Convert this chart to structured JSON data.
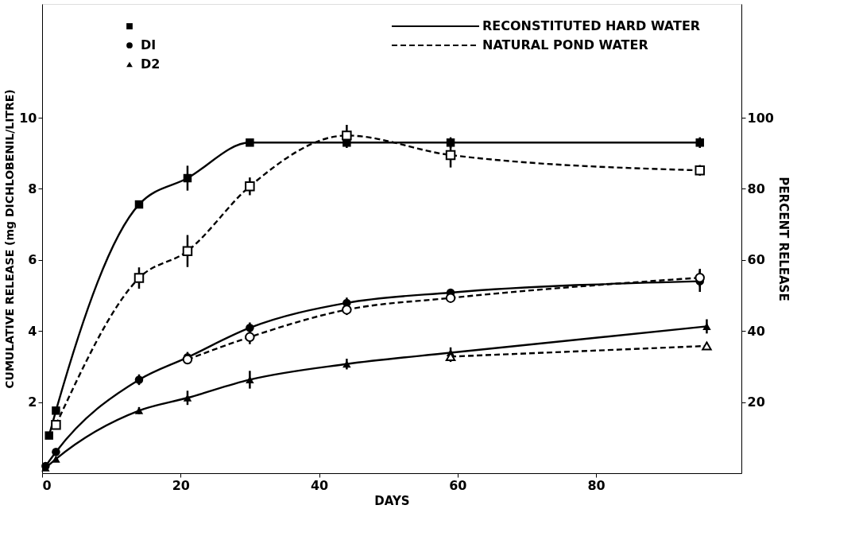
{
  "chart_data": {
    "type": "line",
    "xlabel": "DAYS",
    "ylabel": "CUMULATIVE RELEASE (mg DICHLOBENIL/LITRE)",
    "y2label": "PERCENT RELEASE",
    "xlim": [
      0,
      101
    ],
    "xticks": [
      0,
      20,
      40,
      60,
      80
    ],
    "ylim": [
      0,
      13.2
    ],
    "yticks": [
      2,
      4,
      6,
      8,
      10
    ],
    "y2lim": [
      0,
      132
    ],
    "y2ticks": [
      20,
      40,
      60,
      80,
      100
    ],
    "legend": "top left",
    "grid": false,
    "annotations": [
      "RECONSTITUTED HARD WATER",
      "NATURAL POND WATER"
    ],
    "series": [
      {
        "color": "#000000",
        "marker": "square",
        "line_style": "solid",
        "x": [
          1,
          2,
          14,
          21,
          30,
          44,
          59,
          95
        ],
        "values": [
          1.06,
          1.76,
          7.56,
          8.3,
          9.3,
          9.3,
          9.3,
          9.3
        ],
        "errors": [
          null,
          null,
          0.1,
          0.35,
          0.1,
          0.15,
          0.15,
          0.15
        ]
      },
      {
        "name": "DI",
        "color": "#000000",
        "marker": "circle",
        "line_style": "solid",
        "x": [
          0.5,
          2,
          14,
          21,
          30,
          44,
          59,
          95
        ],
        "values": [
          0.2,
          0.6,
          2.63,
          3.26,
          4.09,
          4.79,
          5.08,
          5.4
        ],
        "errors": [
          null,
          null,
          0.15,
          0.15,
          0.15,
          0.15,
          0.1,
          0.3
        ]
      },
      {
        "name": "D2",
        "color": "#000000",
        "marker": "triangle",
        "line_style": "solid",
        "x": [
          0.5,
          2,
          14,
          21,
          30,
          44,
          59,
          96
        ],
        "values": [
          0.15,
          0.4,
          1.76,
          2.12,
          2.63,
          3.07,
          3.39,
          4.13
        ],
        "errors": [
          null,
          null,
          0.1,
          0.2,
          0.25,
          0.15,
          0.15,
          0.2
        ]
      },
      {
        "color": "#000000",
        "marker": "square",
        "line_style": "dashed",
        "x": [
          2,
          14,
          21,
          30,
          44,
          59,
          95
        ],
        "values": [
          1.36,
          5.49,
          6.25,
          8.07,
          9.5,
          8.95,
          8.52
        ],
        "errors": [
          null,
          0.3,
          0.45,
          0.25,
          0.3,
          0.35,
          0.15
        ]
      },
      {
        "color": "#000000",
        "marker": "circle",
        "line_style": "dashed",
        "x": [
          21,
          30,
          44,
          59,
          95
        ],
        "values": [
          3.2,
          3.83,
          4.6,
          4.93,
          5.5
        ],
        "errors": [
          null,
          0.2,
          0.15,
          0.1,
          0.25
        ]
      },
      {
        "color": "#000000",
        "marker": "triangle",
        "line_style": "dashed",
        "x": [
          59,
          96
        ],
        "values": [
          3.28,
          3.58
        ],
        "errors": [
          0.15,
          0.1
        ]
      }
    ]
  }
}
